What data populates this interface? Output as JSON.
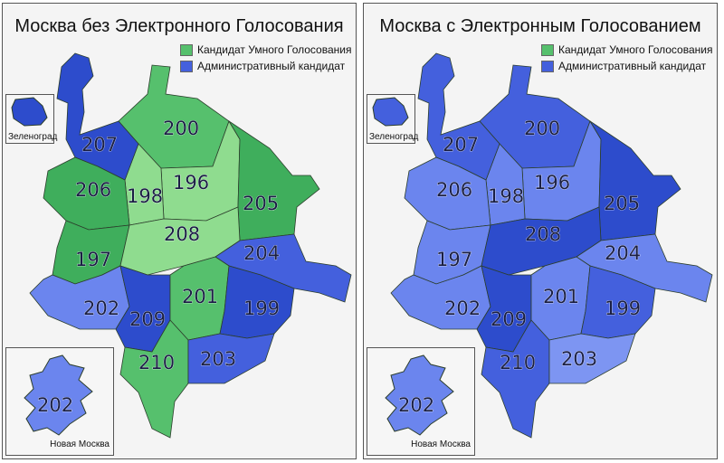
{
  "colors": {
    "green_dark": "#3fae5c",
    "green_mid": "#56c06d",
    "green_light": "#8fdc8f",
    "blue_dark": "#2d4ccc",
    "blue_mid": "#4460dd",
    "blue_light": "#6b85ee",
    "blue_pale": "#7d95f2",
    "border": "#2c3e2c"
  },
  "legend": {
    "smart_vote": "Кандидат Умного Голосования",
    "admin": "Административный кандидат"
  },
  "panels": [
    {
      "title": "Москва без Электронного Голосования",
      "inset_zelenograd": "Зеленоград",
      "inset_new_moscow": "Новая Москва",
      "districts": [
        {
          "id": "200",
          "winner": "smart",
          "shade": "mid"
        },
        {
          "id": "196",
          "winner": "smart",
          "shade": "light"
        },
        {
          "id": "198",
          "winner": "smart",
          "shade": "light"
        },
        {
          "id": "205",
          "winner": "smart",
          "shade": "dark"
        },
        {
          "id": "206",
          "winner": "smart",
          "shade": "dark"
        },
        {
          "id": "207",
          "winner": "admin",
          "shade": "dark"
        },
        {
          "id": "197",
          "winner": "smart",
          "shade": "dark"
        },
        {
          "id": "208",
          "winner": "smart",
          "shade": "light"
        },
        {
          "id": "204",
          "winner": "admin",
          "shade": "mid"
        },
        {
          "id": "202",
          "winner": "admin",
          "shade": "light"
        },
        {
          "id": "209",
          "winner": "admin",
          "shade": "dark"
        },
        {
          "id": "201",
          "winner": "smart",
          "shade": "mid"
        },
        {
          "id": "199",
          "winner": "admin",
          "shade": "dark"
        },
        {
          "id": "210",
          "winner": "smart",
          "shade": "mid"
        },
        {
          "id": "203",
          "winner": "admin",
          "shade": "mid"
        }
      ]
    },
    {
      "title": "Москва с Электронным Голосованием",
      "inset_zelenograd": "Зеленоград",
      "inset_new_moscow": "Новая Москва",
      "districts": [
        {
          "id": "200",
          "winner": "admin",
          "shade": "mid"
        },
        {
          "id": "196",
          "winner": "admin",
          "shade": "light"
        },
        {
          "id": "198",
          "winner": "admin",
          "shade": "light"
        },
        {
          "id": "205",
          "winner": "admin",
          "shade": "dark"
        },
        {
          "id": "206",
          "winner": "admin",
          "shade": "light"
        },
        {
          "id": "207",
          "winner": "admin",
          "shade": "mid"
        },
        {
          "id": "197",
          "winner": "admin",
          "shade": "light"
        },
        {
          "id": "208",
          "winner": "admin",
          "shade": "dark"
        },
        {
          "id": "204",
          "winner": "admin",
          "shade": "light"
        },
        {
          "id": "202",
          "winner": "admin",
          "shade": "light"
        },
        {
          "id": "209",
          "winner": "admin",
          "shade": "dark"
        },
        {
          "id": "201",
          "winner": "admin",
          "shade": "light"
        },
        {
          "id": "199",
          "winner": "admin",
          "shade": "mid"
        },
        {
          "id": "210",
          "winner": "admin",
          "shade": "mid"
        },
        {
          "id": "203",
          "winner": "admin",
          "shade": "pale"
        }
      ]
    }
  ]
}
